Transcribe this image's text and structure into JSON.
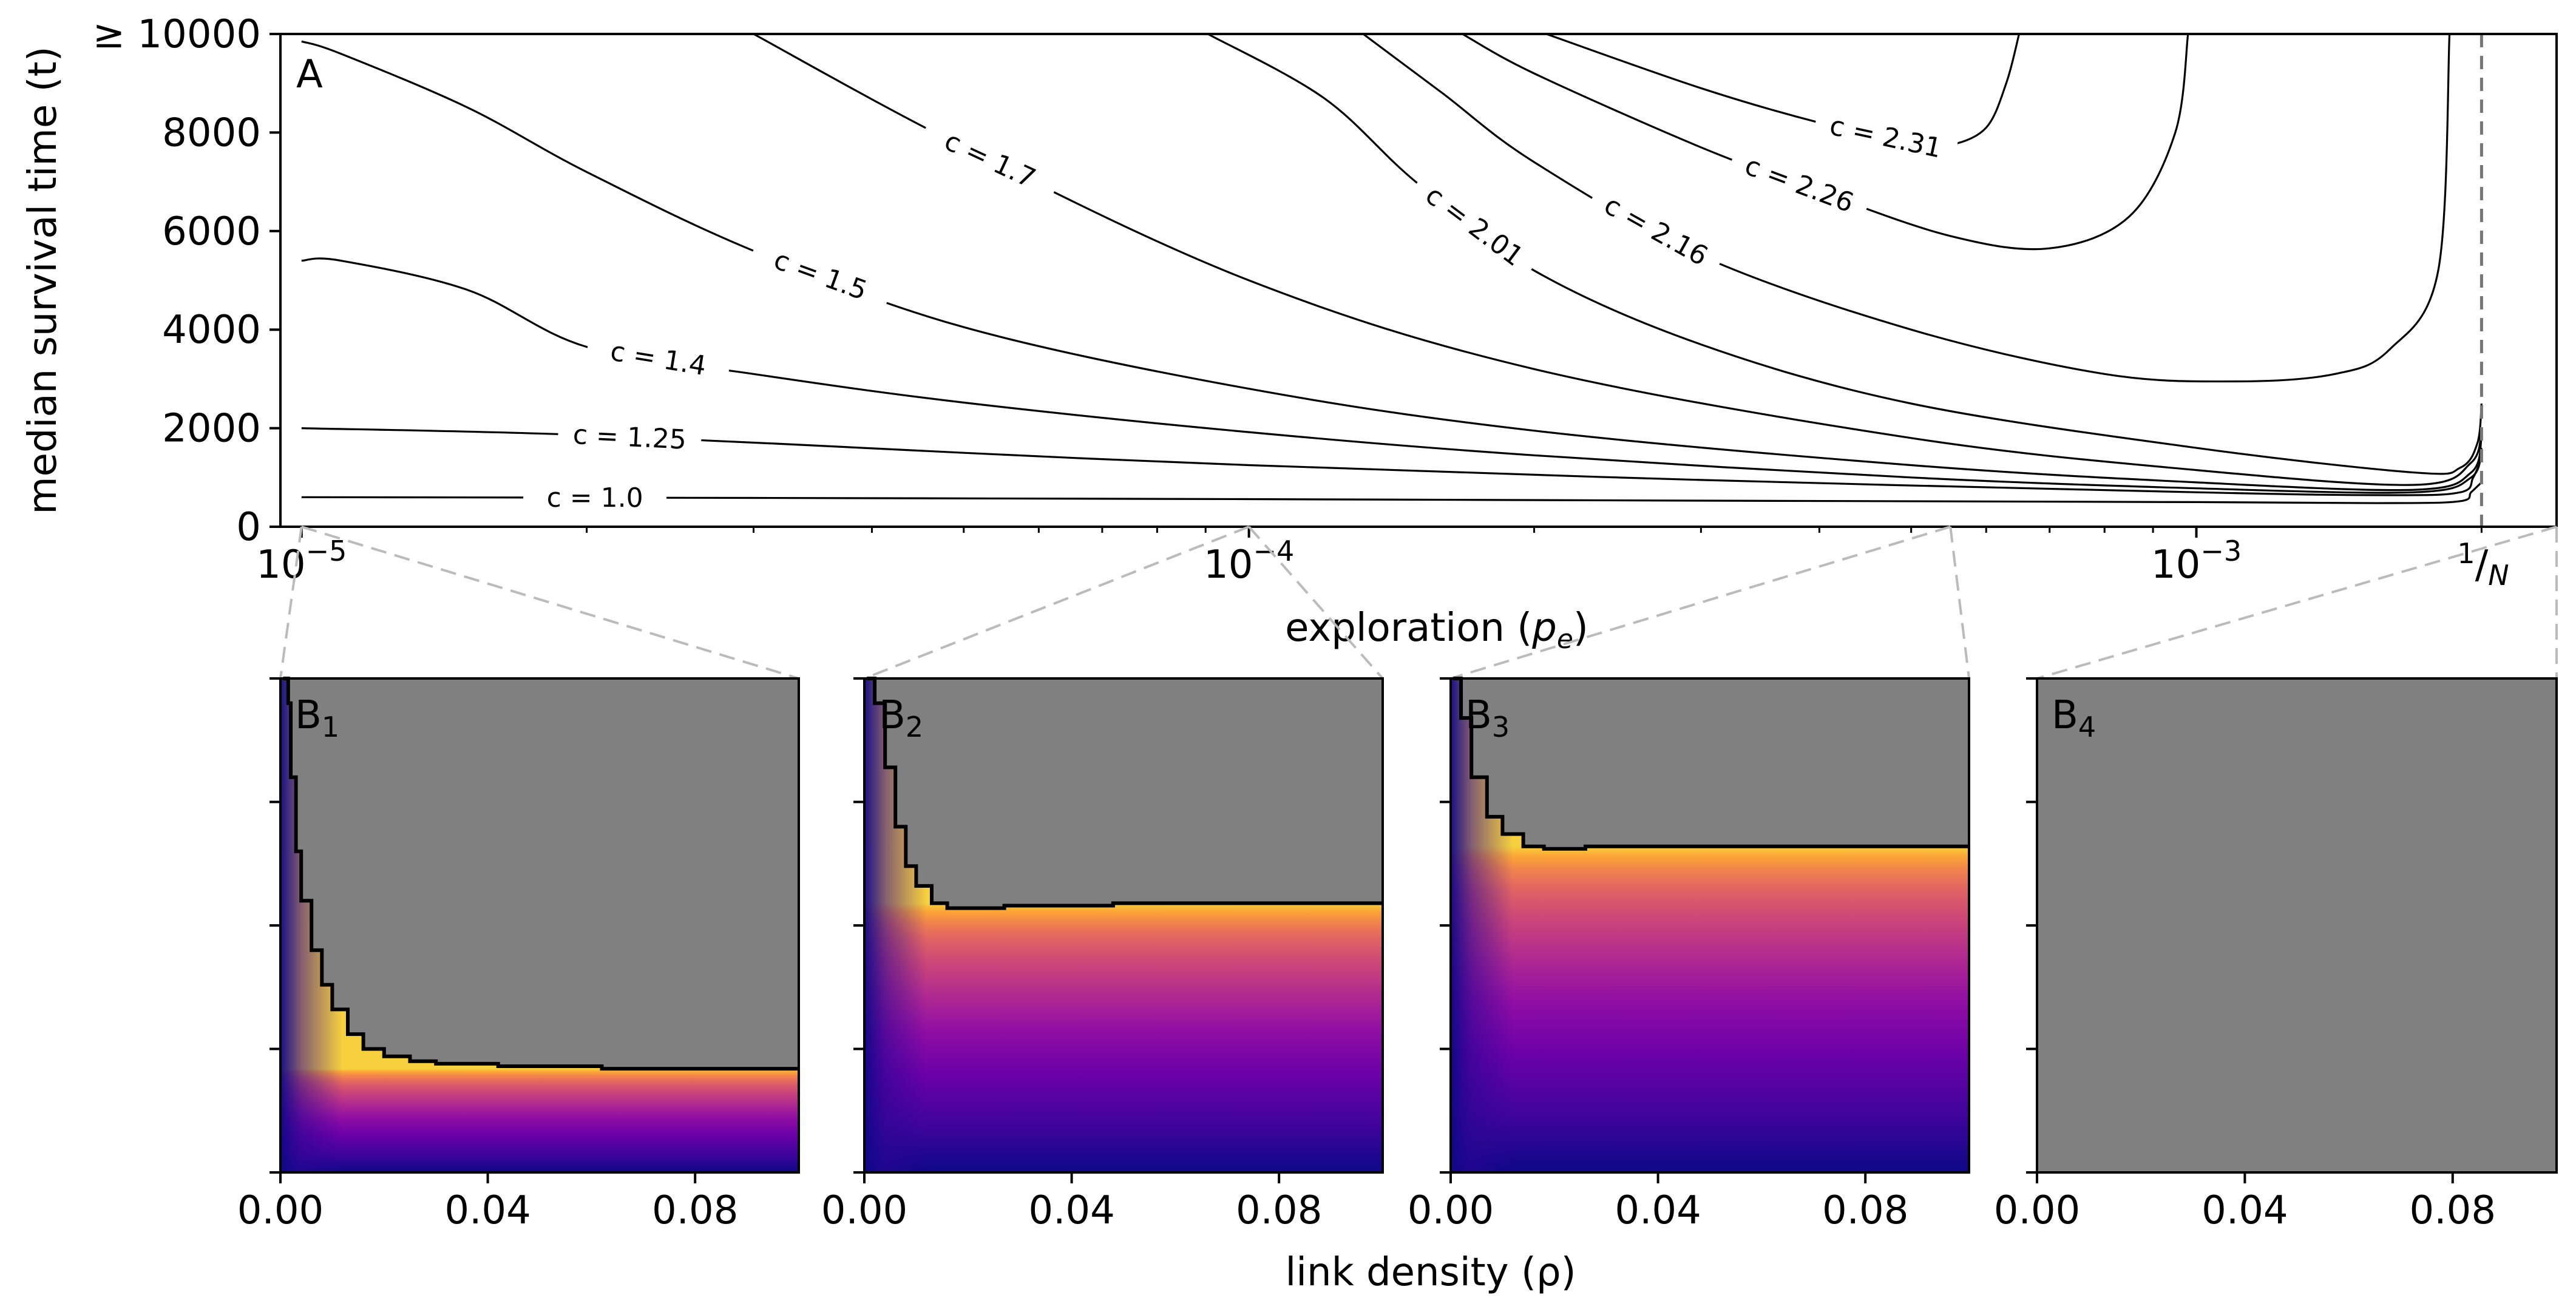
{
  "chart_data": [
    {
      "id": "A",
      "type": "line",
      "panel_label": "A",
      "xlabel": "exploration (p_e)",
      "ylabel": "median survival time (t)",
      "xscale": "log",
      "xlim": [
        9.5e-06,
        0.0024
      ],
      "ylim": [
        0,
        10000
      ],
      "yticks": [
        0,
        2000,
        4000,
        6000,
        8000,
        10000
      ],
      "ytick_labels": [
        "0",
        "2000",
        "4000",
        "6000",
        "8000",
        "≥ 10000"
      ],
      "xtick_labels": [
        {
          "value": 1e-05,
          "base": "10",
          "exp": "−5"
        },
        {
          "value": 0.0001,
          "base": "10",
          "exp": "−4"
        },
        {
          "value": 0.001,
          "base": "10",
          "exp": "−3"
        }
      ],
      "reference_line": {
        "value": 0.002,
        "label_num": "1",
        "label_den": "N",
        "style": "dashed"
      },
      "series": [
        {
          "name": "c = 1.0",
          "label": "c = 1.0",
          "label_at": 2.04e-05,
          "points": [
            [
              1e-05,
              600
            ],
            [
              3e-05,
              585
            ],
            [
              0.0001,
              560
            ],
            [
              0.0003,
              530
            ],
            [
              0.001,
              500
            ],
            [
              0.0016,
              480
            ],
            [
              0.0019,
              520
            ],
            [
              0.00195,
              700
            ],
            [
              0.002,
              900
            ]
          ]
        },
        {
          "name": "c = 1.25",
          "label": "c = 1.25",
          "label_at": 2.22e-05,
          "points": [
            [
              1e-05,
              2000
            ],
            [
              2e-05,
              1860
            ],
            [
              5e-05,
              1500
            ],
            [
              0.0001,
              1250
            ],
            [
              0.0003,
              950
            ],
            [
              0.001,
              700
            ],
            [
              0.0016,
              640
            ],
            [
              0.0019,
              700
            ],
            [
              0.00196,
              1000
            ],
            [
              0.002,
              1400
            ]
          ]
        },
        {
          "name": "c = 1.4",
          "label": "c = 1.4",
          "label_at": 2.38e-05,
          "points": [
            [
              1e-05,
              5400
            ],
            [
              1.1e-05,
              5400
            ],
            [
              1.5e-05,
              4800
            ],
            [
              2e-05,
              3650
            ],
            [
              3e-05,
              3100
            ],
            [
              5e-05,
              2520
            ],
            [
              0.0001,
              1920
            ],
            [
              0.0002,
              1450
            ],
            [
              0.0005,
              1000
            ],
            [
              0.001,
              780
            ],
            [
              0.0017,
              700
            ],
            [
              0.00195,
              1000
            ],
            [
              0.002,
              1600
            ]
          ]
        },
        {
          "name": "c = 1.5",
          "label": "c = 1.5",
          "label_at": 3.53e-05,
          "points": [
            [
              1e-05,
              9850
            ],
            [
              1.1e-05,
              9600
            ],
            [
              1.5e-05,
              8500
            ],
            [
              2e-05,
              7200
            ],
            [
              3e-05,
              5600
            ],
            [
              5e-05,
              4050
            ],
            [
              0.0001,
              2800
            ],
            [
              0.0002,
              1950
            ],
            [
              0.0005,
              1250
            ],
            [
              0.001,
              900
            ],
            [
              0.0017,
              750
            ],
            [
              0.00195,
              1100
            ],
            [
              0.002,
              1800
            ]
          ]
        },
        {
          "name": "c = 1.7",
          "label": "c = 1.7",
          "label_at": 5.33e-05,
          "points": [
            [
              3e-05,
              10000
            ],
            [
              5e-05,
              7700
            ],
            [
              0.0001,
              5000
            ],
            [
              0.0002,
              3200
            ],
            [
              0.0005,
              1800
            ],
            [
              0.001,
              1150
            ],
            [
              0.0017,
              850
            ],
            [
              0.00195,
              1300
            ],
            [
              0.002,
              2000
            ]
          ]
        },
        {
          "name": "c = 2.01",
          "label": "c = 2.01",
          "label_at": 0.000173,
          "points": [
            [
              9.05e-05,
              10000
            ],
            [
              0.00012,
              8700
            ],
            [
              0.00015,
              7000
            ],
            [
              0.0002,
              5200
            ],
            [
              0.0003,
              3700
            ],
            [
              0.0005,
              2500
            ],
            [
              0.001,
              1600
            ],
            [
              0.0017,
              1100
            ],
            [
              0.0019,
              1200
            ],
            [
              0.00198,
              1700
            ],
            [
              0.002,
              2500
            ]
          ]
        },
        {
          "name": "c = 2.16",
          "label": "c = 2.16",
          "label_at": 0.000269,
          "points": [
            [
              0.000132,
              10000
            ],
            [
              0.00016,
              8800
            ],
            [
              0.0002,
              7400
            ],
            [
              0.0003,
              5500
            ],
            [
              0.0005,
              4000
            ],
            [
              0.0008,
              3100
            ],
            [
              0.0011,
              2950
            ],
            [
              0.0014,
              3100
            ],
            [
              0.0016,
              3600
            ],
            [
              0.0018,
              5200
            ],
            [
              0.00185,
              10000
            ]
          ]
        },
        {
          "name": "c = 2.26",
          "label": "c = 2.26",
          "label_at": 0.000381,
          "points": [
            [
              0.000168,
              10000
            ],
            [
              0.0002,
              9200
            ],
            [
              0.0003,
              7700
            ],
            [
              0.0004,
              6800
            ],
            [
              0.00055,
              5900
            ],
            [
              0.0007,
              5650
            ],
            [
              0.00085,
              6300
            ],
            [
              0.00095,
              8000
            ],
            [
              0.00098,
              10000
            ]
          ]
        },
        {
          "name": "c = 2.31",
          "label": "c = 2.31",
          "label_at": 0.00047,
          "points": [
            [
              0.000206,
              10000
            ],
            [
              0.0003,
              8900
            ],
            [
              0.0004,
              8200
            ],
            [
              0.0005,
              7800
            ],
            [
              0.00055,
              7750
            ],
            [
              0.0006,
              8100
            ],
            [
              0.00063,
              9000
            ],
            [
              0.00065,
              10000
            ]
          ]
        }
      ]
    },
    {
      "id": "B1",
      "type": "heatmap",
      "panel_label": "B",
      "panel_sub": "1",
      "xlabel": "link density (ρ)",
      "xlim": [
        0,
        0.1
      ],
      "xticks": [
        0,
        0.04,
        0.08
      ],
      "xtick_labels": [
        "0.00",
        "0.04",
        "0.08"
      ],
      "source_pe": 1e-05,
      "colormap": "plasma",
      "masked_color": "#808080",
      "boundary": [
        [
          0.0005,
          1.0
        ],
        [
          0.0015,
          0.95
        ],
        [
          0.002,
          0.8
        ],
        [
          0.003,
          0.65
        ],
        [
          0.004,
          0.55
        ],
        [
          0.006,
          0.45
        ],
        [
          0.008,
          0.38
        ],
        [
          0.01,
          0.33
        ],
        [
          0.013,
          0.28
        ],
        [
          0.016,
          0.25
        ],
        [
          0.02,
          0.235
        ],
        [
          0.025,
          0.225
        ],
        [
          0.03,
          0.22
        ],
        [
          0.042,
          0.215
        ],
        [
          0.062,
          0.21
        ],
        [
          0.1,
          0.21
        ]
      ]
    },
    {
      "id": "B2",
      "type": "heatmap",
      "panel_label": "B",
      "panel_sub": "2",
      "xlabel": "",
      "xlim": [
        0,
        0.1
      ],
      "xticks": [
        0,
        0.04,
        0.08
      ],
      "xtick_labels": [
        "0.00",
        "0.04",
        "0.08"
      ],
      "source_pe": 0.0001,
      "colormap": "plasma",
      "masked_color": "#808080",
      "boundary": [
        [
          0.0005,
          1.0
        ],
        [
          0.002,
          0.95
        ],
        [
          0.004,
          0.82
        ],
        [
          0.006,
          0.7
        ],
        [
          0.008,
          0.62
        ],
        [
          0.01,
          0.58
        ],
        [
          0.013,
          0.545
        ],
        [
          0.016,
          0.535
        ],
        [
          0.027,
          0.54
        ],
        [
          0.048,
          0.545
        ],
        [
          0.1,
          0.545
        ]
      ]
    },
    {
      "id": "B3",
      "type": "heatmap",
      "panel_label": "B",
      "panel_sub": "3",
      "xlabel": "",
      "xlim": [
        0,
        0.1
      ],
      "xticks": [
        0,
        0.04,
        0.08
      ],
      "xtick_labels": [
        "0.00",
        "0.04",
        "0.08"
      ],
      "source_pe": 0.00055,
      "colormap": "plasma",
      "masked_color": "#808080",
      "boundary": [
        [
          0.0005,
          1.0
        ],
        [
          0.002,
          0.92
        ],
        [
          0.004,
          0.8
        ],
        [
          0.007,
          0.72
        ],
        [
          0.01,
          0.685
        ],
        [
          0.014,
          0.66
        ],
        [
          0.018,
          0.655
        ],
        [
          0.026,
          0.66
        ],
        [
          0.1,
          0.66
        ]
      ]
    },
    {
      "id": "B4",
      "type": "heatmap",
      "panel_label": "B",
      "panel_sub": "4",
      "xlabel": "",
      "xlim": [
        0,
        0.1
      ],
      "xticks": [
        0,
        0.04,
        0.08
      ],
      "xtick_labels": [
        "0.00",
        "0.04",
        "0.08"
      ],
      "source_pe": 0.0024,
      "colormap": "plasma",
      "masked_color": "#808080",
      "boundary": []
    }
  ]
}
